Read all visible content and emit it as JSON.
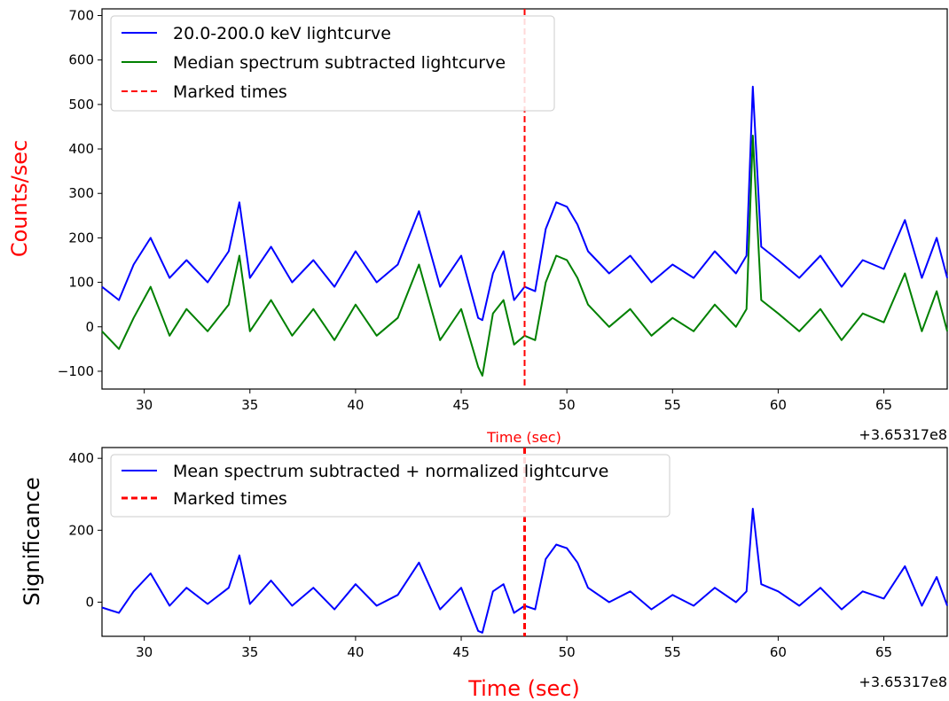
{
  "chart_data": [
    {
      "type": "line",
      "ylabel": "Counts/sec",
      "xlabel": "Time (sec)",
      "label_color": "#ff0000",
      "offset_text": "+3.65317e8",
      "xlim": [
        28,
        68
      ],
      "ylim": [
        -140,
        715
      ],
      "xticks": [
        30,
        35,
        40,
        45,
        50,
        55,
        60,
        65
      ],
      "yticks": [
        -100,
        0,
        100,
        200,
        300,
        400,
        500,
        600,
        700
      ],
      "ytick_labels": [
        "−100",
        "0",
        "100",
        "200",
        "300",
        "400",
        "500",
        "600",
        "700"
      ],
      "legend_position": "upper-left",
      "marked_time": 48.0,
      "series": [
        {
          "name": "20.0-200.0 keV lightcurve",
          "color": "#0000ff",
          "x": [
            28.0,
            28.8,
            29.5,
            30.3,
            31.2,
            32.0,
            33.0,
            34.0,
            34.5,
            35.0,
            36.0,
            37.0,
            38.0,
            39.0,
            40.0,
            41.0,
            42.0,
            43.0,
            44.0,
            45.0,
            45.8,
            46.0,
            46.5,
            47.0,
            47.5,
            48.0,
            48.5,
            49.0,
            49.5,
            50.0,
            50.5,
            51.0,
            52.0,
            53.0,
            54.0,
            55.0,
            56.0,
            57.0,
            58.0,
            58.5,
            58.8,
            59.2,
            60.0,
            61.0,
            62.0,
            63.0,
            64.0,
            65.0,
            66.0,
            66.8,
            67.5,
            68.0
          ],
          "values": [
            90,
            60,
            140,
            200,
            110,
            150,
            100,
            170,
            280,
            110,
            180,
            100,
            150,
            90,
            170,
            100,
            140,
            260,
            90,
            160,
            20,
            15,
            120,
            170,
            60,
            90,
            80,
            220,
            280,
            270,
            230,
            170,
            120,
            160,
            100,
            140,
            110,
            170,
            120,
            160,
            540,
            180,
            150,
            110,
            160,
            90,
            150,
            130,
            240,
            110,
            200,
            110
          ]
        },
        {
          "name": "Median spectrum subtracted lightcurve",
          "color": "#008000",
          "x": [
            28.0,
            28.8,
            29.5,
            30.3,
            31.2,
            32.0,
            33.0,
            34.0,
            34.5,
            35.0,
            36.0,
            37.0,
            38.0,
            39.0,
            40.0,
            41.0,
            42.0,
            43.0,
            44.0,
            45.0,
            45.8,
            46.0,
            46.5,
            47.0,
            47.5,
            48.0,
            48.5,
            49.0,
            49.5,
            50.0,
            50.5,
            51.0,
            52.0,
            53.0,
            54.0,
            55.0,
            56.0,
            57.0,
            58.0,
            58.5,
            58.8,
            59.2,
            60.0,
            61.0,
            62.0,
            63.0,
            64.0,
            65.0,
            66.0,
            66.8,
            67.5,
            68.0
          ],
          "values": [
            -10,
            -50,
            20,
            90,
            -20,
            40,
            -10,
            50,
            160,
            -10,
            60,
            -20,
            40,
            -30,
            50,
            -20,
            20,
            140,
            -30,
            40,
            -90,
            -110,
            30,
            60,
            -40,
            -20,
            -30,
            100,
            160,
            150,
            110,
            50,
            0,
            40,
            -20,
            20,
            -10,
            50,
            0,
            40,
            430,
            60,
            30,
            -10,
            40,
            -30,
            30,
            10,
            120,
            -10,
            80,
            -10
          ]
        }
      ]
    },
    {
      "type": "line",
      "ylabel": "Significance",
      "xlabel": "Time (sec)",
      "label_color": "#ff0000",
      "offset_text": "+3.65317e8",
      "xlim": [
        28,
        68
      ],
      "ylim": [
        -95,
        430
      ],
      "xticks": [
        30,
        35,
        40,
        45,
        50,
        55,
        60,
        65
      ],
      "yticks": [
        0,
        200,
        400
      ],
      "ytick_labels": [
        "0",
        "200",
        "400"
      ],
      "legend_position": "upper-left",
      "marked_time": 48.0,
      "series": [
        {
          "name": "Mean spectrum subtracted + normalized lightcurve",
          "color": "#0000ff",
          "x": [
            28.0,
            28.8,
            29.5,
            30.3,
            31.2,
            32.0,
            33.0,
            34.0,
            34.5,
            35.0,
            36.0,
            37.0,
            38.0,
            39.0,
            40.0,
            41.0,
            42.0,
            43.0,
            44.0,
            45.0,
            45.8,
            46.0,
            46.5,
            47.0,
            47.5,
            48.0,
            48.5,
            49.0,
            49.5,
            50.0,
            50.5,
            51.0,
            52.0,
            53.0,
            54.0,
            55.0,
            56.0,
            57.0,
            58.0,
            58.5,
            58.8,
            59.2,
            60.0,
            61.0,
            62.0,
            63.0,
            64.0,
            65.0,
            66.0,
            66.8,
            67.5,
            68.0
          ],
          "values": [
            -15,
            -30,
            30,
            80,
            -10,
            40,
            -5,
            40,
            130,
            -5,
            60,
            -10,
            40,
            -20,
            50,
            -10,
            20,
            110,
            -20,
            40,
            -80,
            -85,
            30,
            50,
            -30,
            -10,
            -20,
            120,
            160,
            150,
            110,
            40,
            0,
            30,
            -20,
            20,
            -10,
            40,
            0,
            30,
            260,
            50,
            30,
            -10,
            40,
            -20,
            30,
            10,
            100,
            -10,
            70,
            -10
          ]
        }
      ]
    }
  ],
  "legends": {
    "top": [
      {
        "label": "20.0-200.0 keV lightcurve",
        "color": "#0000ff",
        "style": "solid"
      },
      {
        "label": "Median spectrum subtracted lightcurve",
        "color": "#008000",
        "style": "solid"
      },
      {
        "label": "Marked times",
        "color": "#ff0000",
        "style": "dashed"
      }
    ],
    "bottom": [
      {
        "label": "Mean spectrum subtracted + normalized lightcurve",
        "color": "#0000ff",
        "style": "solid"
      },
      {
        "label": "Marked times",
        "color": "#ff0000",
        "style": "dashed"
      }
    ]
  }
}
